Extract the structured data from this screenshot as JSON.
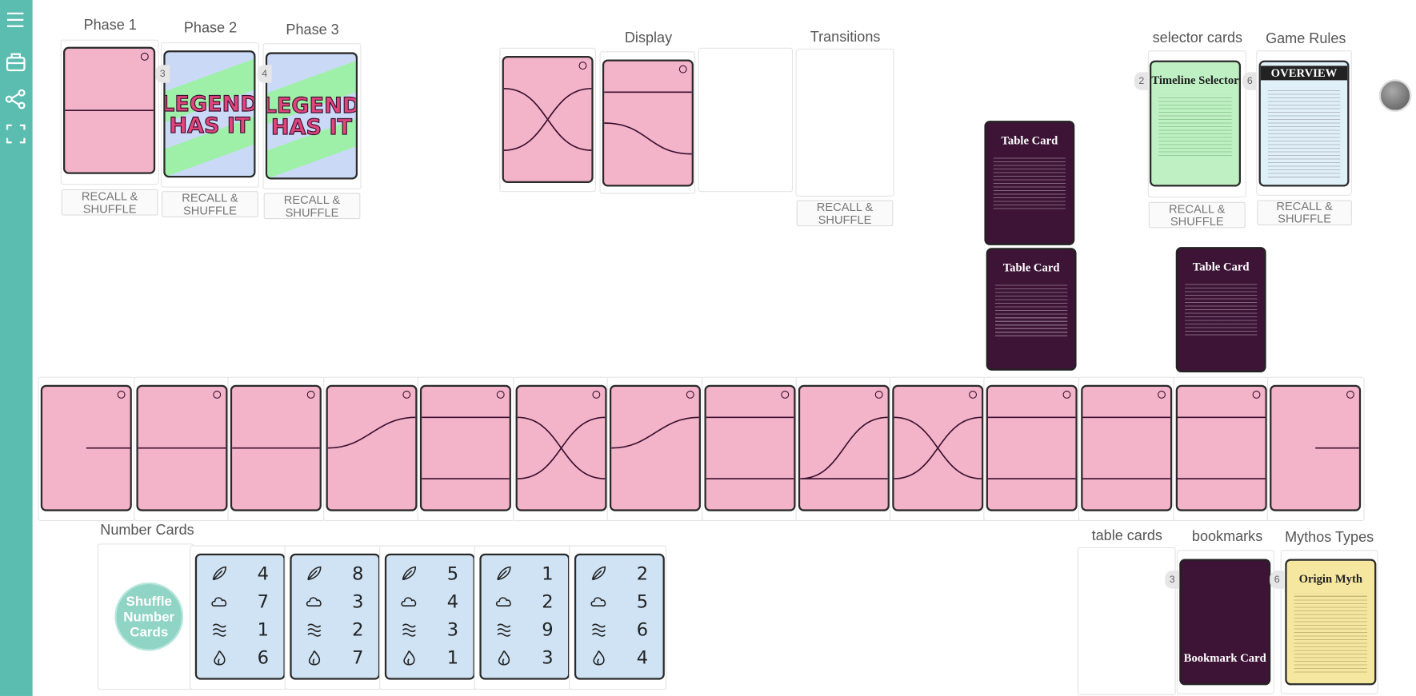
{
  "phases": [
    {
      "label": "Phase 1",
      "button": "RECALL & SHUFFLE"
    },
    {
      "label": "Phase 2",
      "count": 3,
      "card": "LEGEND HAS IT",
      "button": "RECALL & SHUFFLE"
    },
    {
      "label": "Phase 3",
      "count": 4,
      "card": "LEGEND HAS IT",
      "button": "RECALL & SHUFFLE"
    }
  ],
  "display": {
    "label": "Display"
  },
  "transitions": {
    "label": "Transitions",
    "button": "RECALL & SHUFFLE"
  },
  "placed_table_cards": [
    "Table Card",
    "Table Card",
    "Table Card"
  ],
  "selector": {
    "label": "selector cards",
    "count": 2,
    "card": "Timeline Selector",
    "button": "RECALL & SHUFFLE"
  },
  "rules": {
    "label": "Game Rules",
    "count": 6,
    "card": "OVERVIEW",
    "button": "RECALL & SHUFFLE"
  },
  "number_cards": {
    "label": "Number Cards",
    "shuffle": "Shuffle Number Cards",
    "cards": [
      [
        4,
        7,
        1,
        6
      ],
      [
        8,
        3,
        2,
        7
      ],
      [
        5,
        4,
        3,
        1
      ],
      [
        1,
        2,
        9,
        3
      ],
      [
        2,
        5,
        6,
        4
      ]
    ]
  },
  "table_cards": {
    "label": "table cards"
  },
  "bookmarks": {
    "label": "bookmarks",
    "count": 3,
    "card": "Bookmark Card"
  },
  "mythos": {
    "label": "Mythos Types",
    "count": 6,
    "card": "Origin Myth"
  }
}
